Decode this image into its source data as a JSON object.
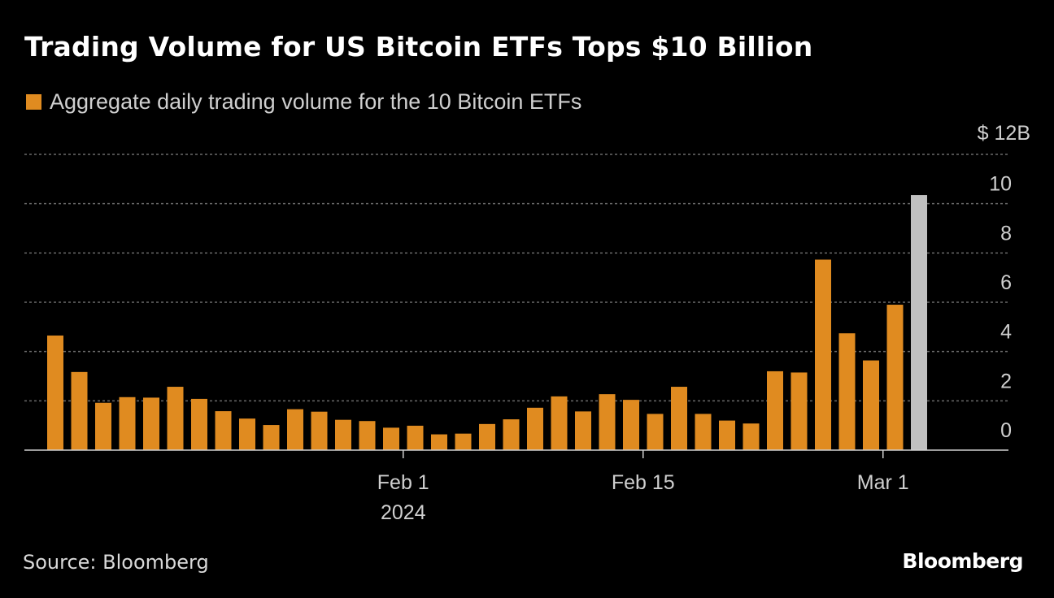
{
  "chart_data": {
    "type": "bar",
    "title": "Trading Volume for US Bitcoin ETFs Tops $10 Billion",
    "legend": "Aggregate daily trading volume for the 10 Bitcoin ETFs",
    "y_unit_label": "$ 12B",
    "yticks": [
      "0",
      "2",
      "4",
      "6",
      "8",
      "10"
    ],
    "ylim": [
      0,
      12
    ],
    "xticks": [
      {
        "label": "Feb 1",
        "sublabel": "2024",
        "at_index": 14
      },
      {
        "label": "Feb 15",
        "sublabel": "",
        "at_index": 24
      },
      {
        "label": "Mar 1",
        "sublabel": "",
        "at_index": 34
      }
    ],
    "grid": true,
    "legend_position": "top-left",
    "colors": {
      "bar": "#e08b20",
      "highlight": "#c0c0c0",
      "grid": "#6a6a6a",
      "axis": "#d0d0d0"
    },
    "values": [
      4.65,
      3.17,
      1.92,
      2.15,
      2.13,
      2.57,
      2.08,
      1.58,
      1.28,
      1.02,
      1.66,
      1.56,
      1.23,
      1.18,
      0.91,
      0.99,
      0.64,
      0.67,
      1.06,
      1.25,
      1.72,
      2.18,
      1.57,
      2.27,
      2.04,
      1.47,
      2.57,
      1.47,
      1.2,
      1.08,
      3.2,
      3.15,
      7.73,
      4.74,
      3.64,
      5.9,
      10.35
    ],
    "highlight_index": 36
  },
  "footer": {
    "source": "Source: Bloomberg",
    "logo": "Bloomberg"
  }
}
